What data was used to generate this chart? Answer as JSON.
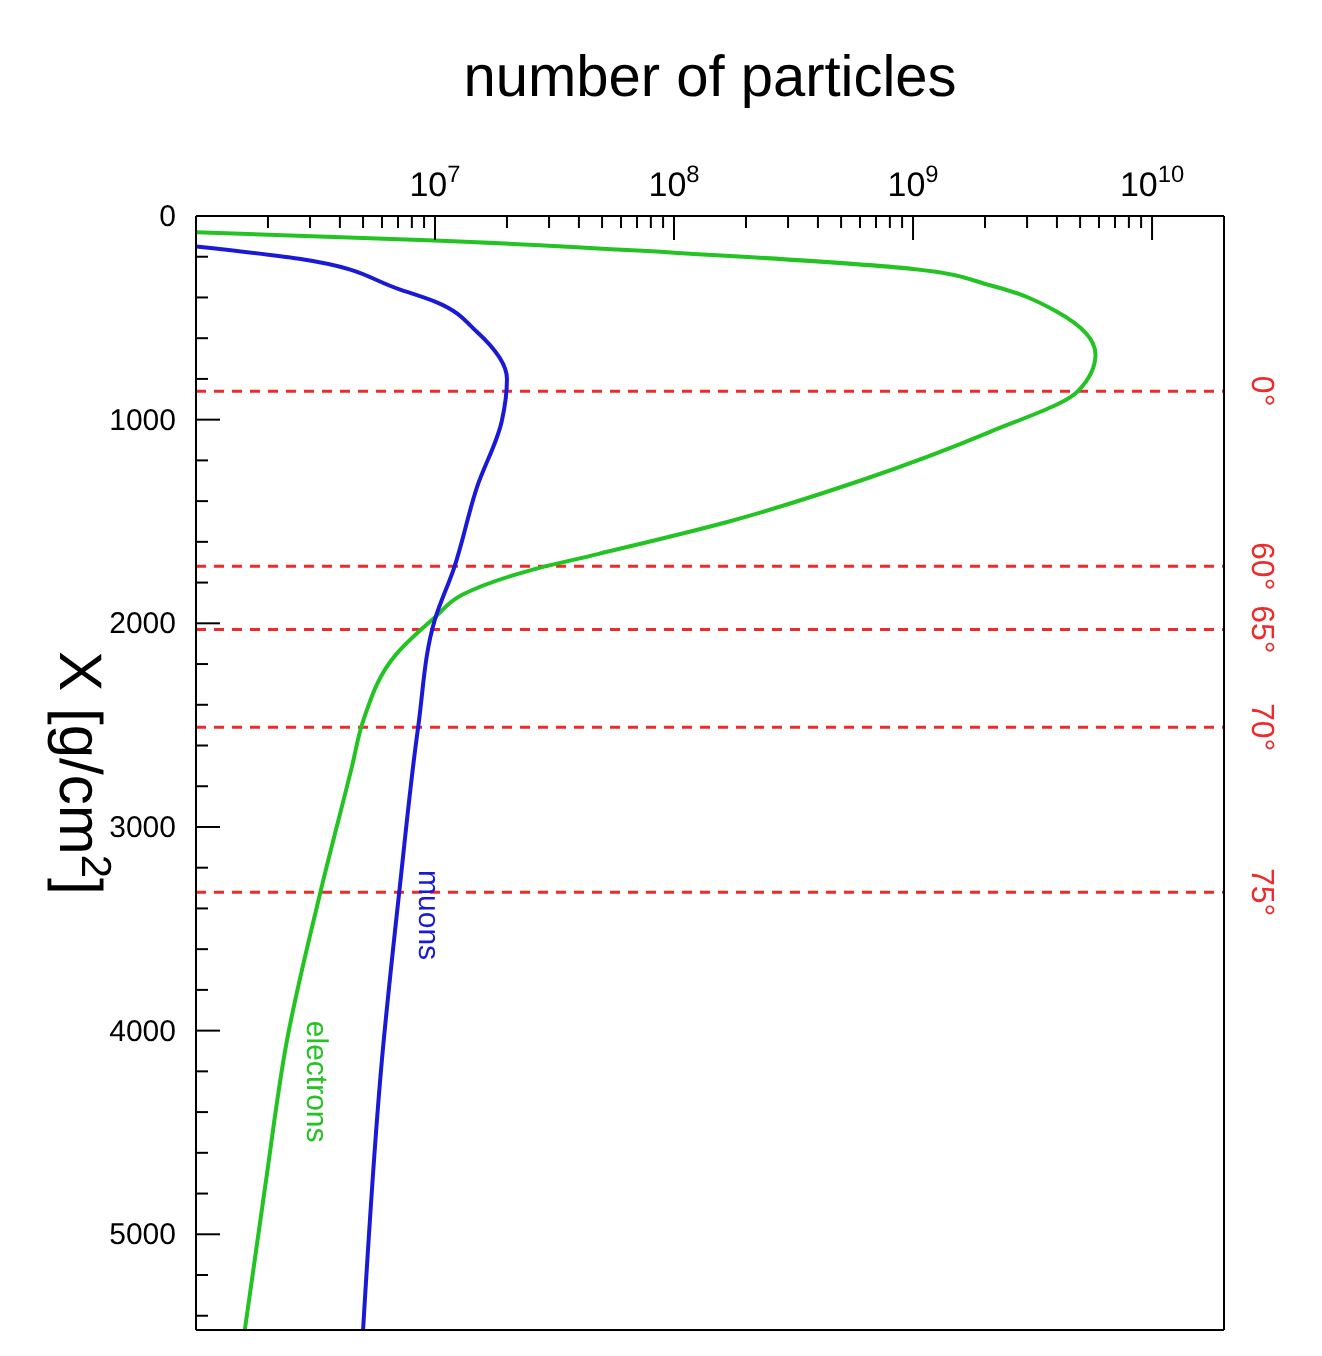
{
  "chart_data": {
    "type": "line",
    "xlabel": "number of particles",
    "ylabel": "X [g/cm$^{2}$]",
    "log": "x",
    "grid": false,
    "legend": false,
    "marker": "none",
    "line_style": "solid",
    "ylim": [
      5470,
      0
    ],
    "yticks": [
      0,
      {
        "value": 200,
        "label": null
      },
      {
        "value": 400,
        "label": null
      },
      {
        "value": 600,
        "label": null
      },
      {
        "value": 800,
        "label": null
      },
      1000,
      {
        "value": 1200,
        "label": null
      },
      {
        "value": 1400,
        "label": null
      },
      {
        "value": 1600,
        "label": null
      },
      {
        "value": 1800,
        "label": null
      },
      2000,
      {
        "value": 2200,
        "label": null
      },
      {
        "value": 2400,
        "label": null
      },
      {
        "value": 2600,
        "label": null
      },
      {
        "value": 2800,
        "label": null
      },
      3000,
      {
        "value": 3200,
        "label": null
      },
      {
        "value": 3400,
        "label": null
      },
      {
        "value": 3600,
        "label": null
      },
      {
        "value": 3800,
        "label": null
      },
      4000,
      {
        "value": 4200,
        "label": null
      },
      {
        "value": 4400,
        "label": null
      },
      {
        "value": 4600,
        "label": null
      },
      {
        "value": 4800,
        "label": null
      },
      5000,
      {
        "value": 5200,
        "label": null
      },
      {
        "value": 5400,
        "label": null
      }
    ],
    "xlim": [
      1000000,
      20000000000
    ],
    "xticks": [
      {
        "value": 2000000,
        "label": null
      },
      {
        "value": 3000000,
        "label": null
      },
      {
        "value": 4000000,
        "label": null
      },
      {
        "value": 5000000,
        "label": null
      },
      {
        "value": 6000000,
        "label": null
      },
      {
        "value": 7000000,
        "label": null
      },
      {
        "value": 8000000,
        "label": null
      },
      {
        "value": 9000000,
        "label": null
      },
      {
        "value": 10000000,
        "label": "10$^{7}$"
      },
      {
        "value": 20000000,
        "label": null
      },
      {
        "value": 30000000,
        "label": null
      },
      {
        "value": 40000000,
        "label": null
      },
      {
        "value": 50000000,
        "label": null
      },
      {
        "value": 60000000,
        "label": null
      },
      {
        "value": 70000000,
        "label": null
      },
      {
        "value": 80000000,
        "label": null
      },
      {
        "value": 90000000,
        "label": null
      },
      {
        "value": 100000000,
        "label": "10$^{8}$"
      },
      {
        "value": 200000000,
        "label": null
      },
      {
        "value": 300000000,
        "label": null
      },
      {
        "value": 400000000,
        "label": null
      },
      {
        "value": 500000000,
        "label": null
      },
      {
        "value": 600000000,
        "label": null
      },
      {
        "value": 700000000,
        "label": null
      },
      {
        "value": 800000000,
        "label": null
      },
      {
        "value": 900000000,
        "label": null
      },
      {
        "value": 1000000000,
        "label": "10$^{9}$"
      },
      {
        "value": 2000000000,
        "label": null
      },
      {
        "value": 3000000000,
        "label": null
      },
      {
        "value": 4000000000,
        "label": null
      },
      {
        "value": 5000000000,
        "label": null
      },
      {
        "value": 6000000000,
        "label": null
      },
      {
        "value": 7000000000,
        "label": null
      },
      {
        "value": 8000000000,
        "label": null
      },
      {
        "value": 9000000000,
        "label": null
      },
      {
        "value": 10000000000,
        "label": "10$^{10}$"
      }
    ],
    "series": [
      {
        "name": "electrons",
        "color": "#22c322",
        "values": [
          80,
          120,
          180,
          260,
          340,
          470,
          680,
          860,
          1060,
          1300,
          1500,
          1660,
          1740,
          1860,
          1970,
          2150,
          2480,
          2700,
          3330,
          4050,
          4760,
          5470
        ],
        "x": [
          1000000,
          10000000,
          100000000,
          1000000000,
          2100000000,
          4000000000,
          5800000000,
          4900000000,
          2100000000,
          600000000,
          170000000,
          48000000,
          25000000,
          13000000,
          10000000,
          6900000,
          5000000,
          4500000,
          3300000,
          2400000,
          1950000,
          1600000
        ]
      },
      {
        "name": "muons",
        "color": "#1a1ad6",
        "values": [
          150,
          210,
          360,
          420,
          570,
          800,
          1010,
          1330,
          1730,
          1980,
          2510,
          3310,
          4140,
          5470
        ],
        "x": [
          1000000,
          2700000,
          7100000,
          10000000,
          15000000,
          20000000,
          19000000,
          15000000,
          12000000,
          10000000,
          8500000,
          7100000,
          6000000,
          5000000
        ]
      }
    ],
    "ref_lines": [
      {
        "axis": "y",
        "value": 860,
        "color": "#ee2a2a",
        "line_style": "dashed"
      },
      {
        "axis": "y",
        "value": 1720,
        "color": "#ee2a2a",
        "line_style": "dashed"
      },
      {
        "axis": "y",
        "value": 2030,
        "color": "#ee2a2a",
        "line_style": "dashed"
      },
      {
        "axis": "y",
        "value": 2510,
        "color": "#ee2a2a",
        "line_style": "dashed"
      },
      {
        "axis": "y",
        "value": 3320,
        "color": "#ee2a2a",
        "line_style": "dashed"
      }
    ],
    "annotations": [
      "0°",
      "60°",
      "65°",
      "70°",
      "75°"
    ]
  }
}
